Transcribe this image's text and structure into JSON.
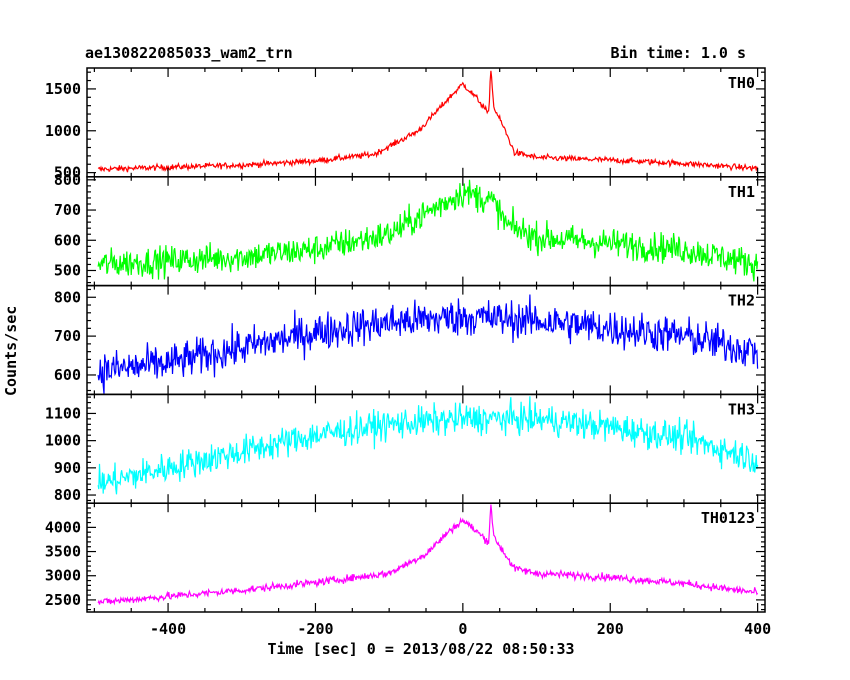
{
  "title_left": "ae130822085033_wam2_trn",
  "title_right": "Bin time: 1.0 s",
  "xlabel": "Time [sec] 0 = 2013/08/22 08:50:33",
  "ylabel": "Counts/sec",
  "chart_data": {
    "type": "line",
    "xlim": [
      -510,
      410
    ],
    "x_ticks": [
      -400,
      -200,
      0,
      200,
      400
    ],
    "x_range": [
      -495,
      400
    ],
    "bin_time_s": 1.0,
    "panels": [
      {
        "name": "TH0",
        "color": "#ff0000",
        "ylim": [
          450,
          1750
        ],
        "y_ticks": [
          500,
          1000,
          1500
        ],
        "profile": [
          [
            -495,
            540
          ],
          [
            -300,
            590
          ],
          [
            -200,
            640
          ],
          [
            -120,
            720
          ],
          [
            -60,
            1000
          ],
          [
            -20,
            1380
          ],
          [
            0,
            1560
          ],
          [
            20,
            1380
          ],
          [
            35,
            1200
          ],
          [
            38,
            1750
          ],
          [
            42,
            1280
          ],
          [
            55,
            1050
          ],
          [
            70,
            740
          ],
          [
            100,
            680
          ],
          [
            200,
            650
          ],
          [
            300,
            610
          ],
          [
            400,
            550
          ]
        ],
        "noise": 25
      },
      {
        "name": "TH1",
        "color": "#00ff00",
        "ylim": [
          450,
          810
        ],
        "y_ticks": [
          500,
          600,
          700,
          800
        ],
        "profile": [
          [
            -495,
            520
          ],
          [
            -300,
            545
          ],
          [
            -200,
            570
          ],
          [
            -100,
            620
          ],
          [
            -50,
            690
          ],
          [
            0,
            760
          ],
          [
            40,
            730
          ],
          [
            60,
            650
          ],
          [
            100,
            610
          ],
          [
            200,
            590
          ],
          [
            300,
            570
          ],
          [
            400,
            520
          ]
        ],
        "noise": 35
      },
      {
        "name": "TH2",
        "color": "#0000ff",
        "ylim": [
          550,
          830
        ],
        "y_ticks": [
          600,
          700,
          800
        ],
        "profile": [
          [
            -495,
            610
          ],
          [
            -400,
            630
          ],
          [
            -300,
            670
          ],
          [
            -200,
            710
          ],
          [
            -100,
            735
          ],
          [
            0,
            750
          ],
          [
            100,
            740
          ],
          [
            200,
            720
          ],
          [
            300,
            700
          ],
          [
            400,
            660
          ]
        ],
        "noise": 35
      },
      {
        "name": "TH3",
        "color": "#00ffff",
        "ylim": [
          770,
          1170
        ],
        "y_ticks": [
          800,
          900,
          1000,
          1100
        ],
        "profile": [
          [
            -495,
            840
          ],
          [
            -400,
            900
          ],
          [
            -300,
            960
          ],
          [
            -200,
            1020
          ],
          [
            -100,
            1060
          ],
          [
            0,
            1080
          ],
          [
            100,
            1080
          ],
          [
            200,
            1050
          ],
          [
            300,
            1010
          ],
          [
            400,
            930
          ]
        ],
        "noise": 40
      },
      {
        "name": "TH0123",
        "color": "#ff00ff",
        "ylim": [
          2250,
          4500
        ],
        "y_ticks": [
          2500,
          3000,
          3500,
          4000
        ],
        "profile": [
          [
            -495,
            2450
          ],
          [
            -300,
            2700
          ],
          [
            -200,
            2860
          ],
          [
            -100,
            3050
          ],
          [
            -50,
            3450
          ],
          [
            -20,
            3900
          ],
          [
            0,
            4150
          ],
          [
            20,
            3900
          ],
          [
            35,
            3700
          ],
          [
            38,
            4500
          ],
          [
            42,
            3800
          ],
          [
            55,
            3500
          ],
          [
            70,
            3150
          ],
          [
            100,
            3050
          ],
          [
            200,
            2970
          ],
          [
            300,
            2840
          ],
          [
            400,
            2650
          ]
        ],
        "noise": 55
      }
    ]
  }
}
